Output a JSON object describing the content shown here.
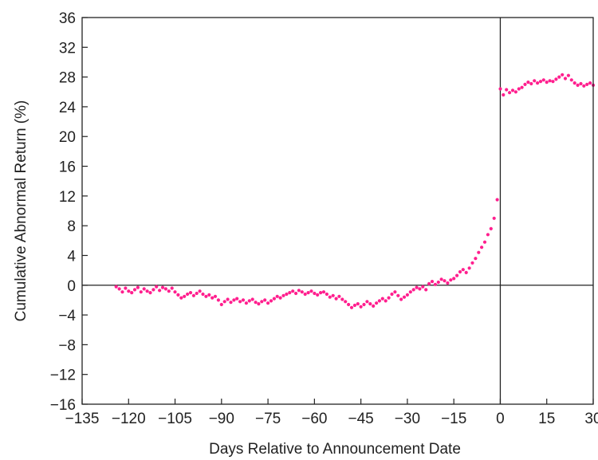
{
  "chart_data": {
    "type": "scatter",
    "xlabel": "Days Relative to Announcement Date",
    "ylabel": "Cumulative Abnormal Return (%)",
    "xlim": [
      -135,
      30
    ],
    "ylim": [
      -16,
      36
    ],
    "xticks": [
      -135,
      -120,
      -105,
      -90,
      -75,
      -60,
      -45,
      -30,
      -15,
      0,
      15,
      30
    ],
    "yticks": [
      -16,
      -12,
      -8,
      -4,
      0,
      4,
      8,
      12,
      16,
      20,
      24,
      28,
      32,
      36
    ],
    "xtick_labels": [
      "−135",
      "−120",
      "−105",
      "−90",
      "−75",
      "−60",
      "−45",
      "−30",
      "−15",
      "0",
      "15",
      "30"
    ],
    "ytick_labels": [
      "−16",
      "−12",
      "−8",
      "−4",
      "0",
      "4",
      "8",
      "12",
      "16",
      "20",
      "24",
      "28",
      "32",
      "36"
    ],
    "reference_lines": {
      "x": 0,
      "y": 0
    },
    "grid": false,
    "marker_color": "#ff1f8e",
    "frame_color": "#222222",
    "series": [
      {
        "x": [
          -124,
          -123,
          -122,
          -121,
          -120,
          -119,
          -118,
          -117,
          -116,
          -115,
          -114,
          -113,
          -112,
          -111,
          -110,
          -109,
          -108,
          -107,
          -106,
          -105,
          -104,
          -103,
          -102,
          -101,
          -100,
          -99,
          -98,
          -97,
          -96,
          -95,
          -94,
          -93,
          -92,
          -91,
          -90,
          -89,
          -88,
          -87,
          -86,
          -85,
          -84,
          -83,
          -82,
          -81,
          -80,
          -79,
          -78,
          -77,
          -76,
          -75,
          -74,
          -73,
          -72,
          -71,
          -70,
          -69,
          -68,
          -67,
          -66,
          -65,
          -64,
          -63,
          -62,
          -61,
          -60,
          -59,
          -58,
          -57,
          -56,
          -55,
          -54,
          -53,
          -52,
          -51,
          -50,
          -49,
          -48,
          -47,
          -46,
          -45,
          -44,
          -43,
          -42,
          -41,
          -40,
          -39,
          -38,
          -37,
          -36,
          -35,
          -34,
          -33,
          -32,
          -31,
          -30,
          -29,
          -28,
          -27,
          -26,
          -25,
          -24,
          -23,
          -22,
          -21,
          -20,
          -19,
          -18,
          -17,
          -16,
          -15,
          -14,
          -13,
          -12,
          -11,
          -10,
          -9,
          -8,
          -7,
          -6,
          -5,
          -4,
          -3,
          -2,
          -1,
          0,
          1,
          2,
          3,
          4,
          5,
          6,
          7,
          8,
          9,
          10,
          11,
          12,
          13,
          14,
          15,
          16,
          17,
          18,
          19,
          20,
          21,
          22,
          23,
          24,
          25,
          26,
          27,
          28,
          29,
          30
        ],
        "y": [
          -0.2,
          -0.5,
          -0.9,
          -0.4,
          -0.8,
          -1.0,
          -0.6,
          -0.3,
          -0.9,
          -0.5,
          -0.8,
          -1.0,
          -0.6,
          -0.2,
          -0.7,
          -0.3,
          -0.5,
          -0.8,
          -0.4,
          -0.9,
          -1.3,
          -1.7,
          -1.5,
          -1.2,
          -1.0,
          -1.4,
          -1.1,
          -0.8,
          -1.2,
          -1.5,
          -1.3,
          -1.7,
          -1.5,
          -2.0,
          -2.6,
          -2.2,
          -1.9,
          -2.3,
          -2.0,
          -1.8,
          -2.2,
          -2.0,
          -2.4,
          -2.1,
          -1.9,
          -2.3,
          -2.5,
          -2.2,
          -2.0,
          -2.4,
          -2.1,
          -1.8,
          -1.5,
          -1.7,
          -1.4,
          -1.2,
          -1.0,
          -0.8,
          -1.1,
          -0.7,
          -0.9,
          -1.2,
          -1.0,
          -0.8,
          -1.1,
          -1.3,
          -1.0,
          -0.9,
          -1.2,
          -1.6,
          -1.4,
          -1.8,
          -1.5,
          -1.9,
          -2.2,
          -2.6,
          -3.0,
          -2.7,
          -2.5,
          -2.9,
          -2.6,
          -2.2,
          -2.5,
          -2.8,
          -2.4,
          -2.1,
          -1.8,
          -2.1,
          -1.7,
          -1.2,
          -0.9,
          -1.4,
          -1.9,
          -1.6,
          -1.3,
          -0.9,
          -0.6,
          -0.3,
          -0.5,
          -0.2,
          -0.6,
          0.2,
          0.5,
          0.1,
          0.4,
          0.8,
          0.6,
          0.3,
          0.7,
          0.9,
          1.3,
          1.8,
          2.1,
          1.7,
          2.3,
          3.0,
          3.6,
          4.4,
          5.1,
          5.8,
          6.8,
          7.6,
          9.0,
          11.5,
          26.4,
          25.6,
          26.3,
          25.9,
          26.2,
          26.0,
          26.4,
          26.6,
          27.0,
          27.3,
          27.1,
          27.5,
          27.2,
          27.4,
          27.6,
          27.3,
          27.5,
          27.4,
          27.7,
          28.0,
          28.3,
          27.8,
          28.2,
          27.6,
          27.2,
          26.9,
          27.1,
          26.8,
          27.0,
          27.2,
          26.9
        ]
      }
    ]
  }
}
